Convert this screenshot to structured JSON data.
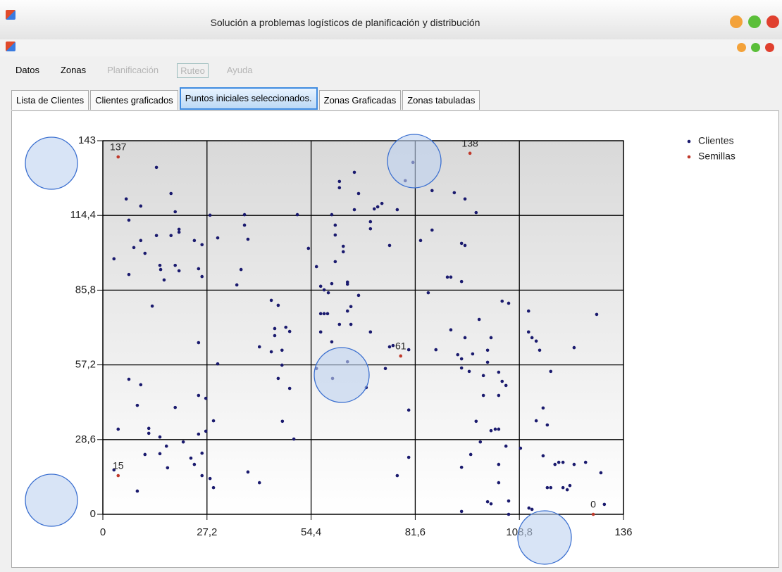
{
  "window": {
    "title": "Solución a problemas logísticos de planificación y distribución"
  },
  "menu": [
    "Datos",
    "Zonas",
    "Planificación",
    "Ruteo",
    "Ayuda"
  ],
  "tabs": [
    "Lista de Clientes",
    "Clientes graficados",
    "Puntos iniciales seleccionados.",
    "Zonas Graficadas",
    "Zonas tabuladas"
  ],
  "chart_data": {
    "type": "scatter",
    "xlim": [
      0,
      136
    ],
    "ylim": [
      0,
      143
    ],
    "xticks": [
      0,
      {
        "value": 27.2,
        "label": "27,2"
      },
      {
        "value": 54.4,
        "label": "54,4"
      },
      {
        "value": 81.6,
        "label": "81,6"
      },
      {
        "value": 108.8,
        "label": "108,8"
      },
      136
    ],
    "yticks": [
      0,
      {
        "value": 28.6,
        "label": "28,6"
      },
      {
        "value": 57.2,
        "label": "57,2"
      },
      {
        "value": 85.8,
        "label": "85,8"
      },
      {
        "value": 114.4,
        "label": "114,4"
      },
      143
    ],
    "grid": true,
    "legend": "top-right",
    "series": [
      {
        "name": "Clientes",
        "color": "#1a1a6e",
        "x": [
          2.9,
          4.0,
          2.9,
          6.1,
          6.8,
          6.8,
          8.1,
          6.8,
          9.0,
          9.0,
          9.9,
          9.9,
          9.9,
          11.0,
          11.0,
          12.0,
          12.0,
          12.9,
          14.0,
          14.0,
          14.9,
          15.1,
          14.9,
          14.9,
          16.0,
          16.6,
          16.9,
          17.8,
          17.8,
          18.9,
          18.9,
          18.9,
          19.9,
          19.9,
          19.9,
          21.0,
          23.0,
          23.9,
          23.9,
          25.0,
          25.0,
          25.0,
          25.0,
          25.9,
          25.9,
          25.9,
          25.9,
          26.9,
          26.9,
          28.0,
          28.0,
          28.9,
          28.9,
          30.0,
          30.0,
          35.0,
          36.1,
          37.0,
          37.0,
          37.9,
          37.9,
          40.9,
          40.9,
          44.0,
          44.0,
          44.9,
          44.9,
          45.8,
          45.8,
          46.8,
          46.8,
          46.9,
          47.8,
          48.8,
          48.8,
          49.9,
          50.8,
          53.7,
          55.8,
          55.8,
          56.9,
          57.8,
          56.9,
          57.8,
          56.9,
          58.7,
          58.9,
          59.8,
          59.8,
          60.7,
          60.7,
          60.7,
          59.8,
          61.8,
          61.8,
          61.8,
          62.8,
          62.8,
          63.9,
          63.9,
          63.9,
          64.8,
          64.8,
          65.7,
          65.7,
          66.8,
          66.8,
          68.8,
          69.9,
          69.9,
          69.9,
          70.9,
          71.8,
          72.9,
          73.8,
          74.9,
          74.9,
          75.8,
          76.9,
          76.9,
          79.0,
          79.9,
          79.9,
          79.9,
          81.0,
          83.0,
          85.0,
          86.0,
          86.0,
          87.0,
          90.0,
          90.9,
          90.9,
          91.8,
          92.7,
          93.7,
          93.7,
          93.7,
          93.7,
          93.7,
          93.7,
          94.6,
          94.6,
          94.6,
          95.7,
          96.1,
          96.6,
          97.5,
          97.5,
          98.3,
          98.6,
          99.4,
          99.4,
          100.5,
          100.5,
          100.5,
          101.4,
          101.4,
          101.4,
          102.5,
          103.4,
          103.4,
          103.4,
          103.4,
          103.4,
          104.3,
          105.3,
          104.3,
          105.3,
          106.0,
          106.0,
          106.0,
          109.1,
          111.3,
          112.1,
          111.2,
          111.2,
          112.1,
          113.2,
          113.2,
          114.1,
          115.0,
          115.0,
          116.1,
          116.1,
          117.0,
          117.0,
          118.1,
          119.1,
          120.2,
          120.2,
          121.3,
          122.0,
          123.1,
          123.1,
          126.1,
          129.0,
          130.1,
          131.0,
          60.0,
          63.9
        ],
        "values": [
          97.8,
          32.6,
          17.0,
          120.7,
          112.6,
          91.8,
          102.1,
          51.7,
          41.7,
          8.9,
          118.0,
          104.8,
          49.6,
          99.9,
          22.9,
          32.9,
          31.0,
          79.7,
          132.8,
          106.7,
          95.3,
          93.7,
          29.6,
          23.2,
          89.7,
          26.1,
          17.8,
          122.8,
          106.7,
          115.8,
          95.3,
          40.9,
          108.0,
          109.1,
          93.2,
          27.7,
          21.5,
          104.8,
          19.1,
          94.0,
          65.7,
          45.5,
          30.7,
          103.2,
          91.0,
          23.4,
          14.8,
          44.4,
          31.8,
          114.5,
          13.7,
          10.2,
          35.8,
          57.6,
          105.8,
          87.8,
          93.7,
          114.7,
          110.7,
          105.3,
          16.2,
          64.1,
          12.1,
          62.2,
          81.9,
          71.1,
          68.4,
          80.0,
          52.0,
          57.1,
          62.8,
          35.6,
          71.6,
          70.0,
          48.2,
          28.8,
          114.7,
          101.8,
          55.8,
          94.8,
          87.3,
          85.9,
          76.8,
          76.8,
          69.8,
          76.8,
          84.8,
          114.7,
          66.0,
          110.7,
          106.9,
          96.7,
          88.3,
          127.4,
          125.0,
          72.7,
          102.6,
          100.5,
          88.9,
          88.1,
          77.8,
          79.5,
          72.7,
          116.6,
          130.9,
          122.8,
          83.8,
          48.5,
          112.0,
          109.3,
          69.8,
          116.9,
          117.7,
          119.0,
          55.8,
          102.9,
          64.1,
          64.6,
          116.6,
          14.8,
          127.7,
          63.0,
          39.9,
          21.8,
          134.7,
          104.8,
          84.8,
          123.9,
          108.8,
          63.0,
          90.8,
          90.8,
          70.6,
          123.1,
          61.1,
          89.1,
          103.7,
          59.5,
          56.0,
          18.0,
          1.1,
          120.7,
          102.9,
          67.6,
          54.7,
          22.9,
          61.4,
          35.6,
          115.5,
          74.6,
          27.7,
          45.5,
          53.1,
          62.8,
          58.2,
          4.8,
          4.0,
          67.6,
          32.0,
          32.6,
          32.6,
          19.1,
          12.1,
          45.5,
          54.4,
          50.9,
          49.3,
          81.6,
          26.1,
          80.8,
          5.1,
          0,
          25.3,
          2.4,
          1.9,
          77.8,
          69.8,
          67.6,
          66.3,
          35.8,
          62.8,
          40.7,
          22.4,
          34.2,
          10.2,
          10.2,
          54.7,
          19.1,
          19.9,
          19.9,
          10.2,
          9.4,
          11.0,
          19.1,
          63.8,
          19.9,
          76.5,
          15.9,
          3.8,
          52.0,
          58.4
        ]
      },
      {
        "name": "Semillas",
        "color": "#c0392b",
        "x": [
          4.0,
          95.9,
          77.8,
          4.0,
          128.1
        ],
        "values": [
          136.8,
          138.2,
          60.6,
          14.8,
          0
        ],
        "point_labels": [
          "137",
          "138",
          "61",
          "15",
          "0"
        ]
      }
    ]
  }
}
